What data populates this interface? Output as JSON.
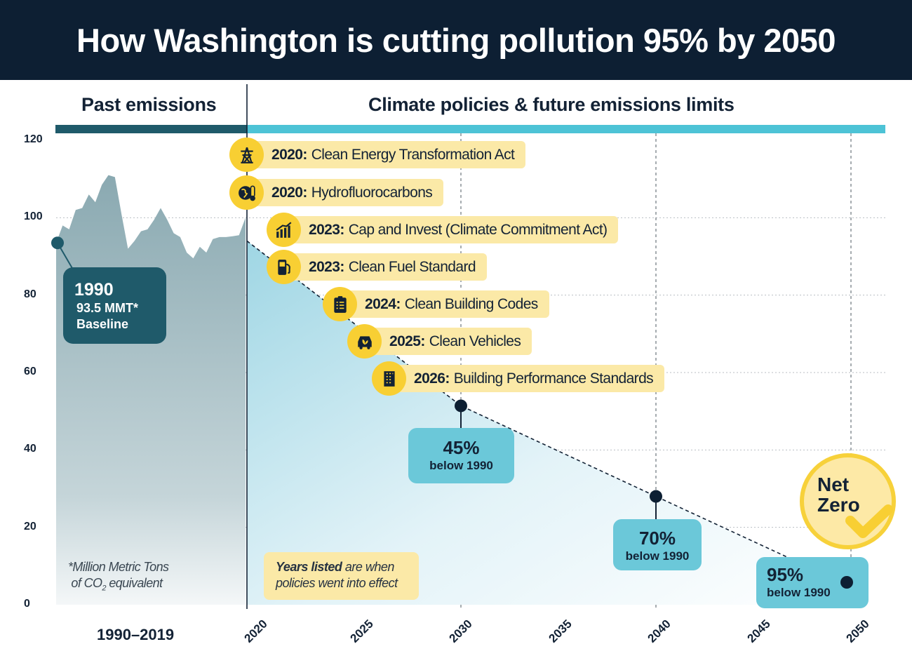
{
  "title": "How Washington is cutting pollution 95% by 2050",
  "sections": {
    "past": "Past emissions",
    "future": "Climate policies & future emissions limits"
  },
  "colors": {
    "header_bg": "#0d1f33",
    "past_bar": "#1f5a6a",
    "future_bar": "#4dc3d6",
    "past_area": "#8fadb4",
    "future_area": "#9fd6e4",
    "pill": "#fbe9a7",
    "icon_circle": "#f8cf33",
    "target_box": "#6bc8d9",
    "marker": "#0d1f33"
  },
  "baseline": {
    "year": "1990",
    "value": "93.5 MMT*",
    "label": "Baseline"
  },
  "footnote": {
    "line1": "*Million Metric Tons",
    "line2a": "of CO",
    "sub": "2",
    "line2b": " equivalent"
  },
  "note": {
    "bold": "Years listed",
    "rest1": " are when",
    "line2": "policies went into effect"
  },
  "period_label": "1990–2019",
  "policies": [
    {
      "year": "2020:",
      "name": "Clean Energy Transformation Act",
      "icon": "power-tower-icon"
    },
    {
      "year": "2020:",
      "name": "Hydrofluorocarbons",
      "icon": "globe-thermometer-icon"
    },
    {
      "year": "2023:",
      "name": "Cap and Invest (Climate Commitment Act)",
      "icon": "rising-bar-chart-icon"
    },
    {
      "year": "2023:",
      "name": "Clean Fuel Standard",
      "icon": "fuel-pump-icon"
    },
    {
      "year": "2024:",
      "name": "Clean Building Codes",
      "icon": "clipboard-checklist-icon"
    },
    {
      "year": "2025:",
      "name": "Clean Vehicles",
      "icon": "car-leaf-icon"
    },
    {
      "year": "2026:",
      "name": "Building Performance Standards",
      "icon": "office-building-icon"
    }
  ],
  "targets": [
    {
      "pct": "45%",
      "sub": "below 1990"
    },
    {
      "pct": "70%",
      "sub": "below 1990"
    },
    {
      "pct": "95%",
      "sub": "below 1990"
    }
  ],
  "net_zero": {
    "line1": "Net",
    "line2": "Zero"
  },
  "chart_data": {
    "type": "area",
    "title": "How Washington is cutting pollution 95% by 2050",
    "ylim": [
      0,
      120
    ],
    "yticks": [
      "0",
      "20",
      "40",
      "60",
      "80",
      "100",
      "120"
    ],
    "xticks": [
      "2020",
      "2025",
      "2030",
      "2035",
      "2040",
      "2045",
      "2050"
    ],
    "grid": true,
    "past_series": {
      "years": [
        1990,
        1991,
        1992,
        1993,
        1994,
        1995,
        1996,
        1997,
        1998,
        1999,
        2000,
        2001,
        2002,
        2003,
        2004,
        2005,
        2006,
        2007,
        2008,
        2009,
        2010,
        2011,
        2012,
        2013,
        2014,
        2015,
        2016,
        2017,
        2018,
        2019
      ],
      "values": [
        93.5,
        98,
        97,
        102,
        102.5,
        106,
        104,
        108.5,
        111,
        110.5,
        101,
        92,
        94,
        96.5,
        97,
        99.5,
        102.5,
        99.5,
        96,
        95,
        91,
        89.5,
        92.5,
        91,
        94.5,
        95,
        95,
        95.2,
        95.5,
        100
      ]
    },
    "future_limits": {
      "years": [
        2020,
        2030,
        2040,
        2050
      ],
      "values": [
        94,
        51.4,
        28,
        4.7
      ]
    },
    "annotations": [
      "1990 93.5 MMT* Baseline",
      "45% below 1990",
      "70% below 1990",
      "95% below 1990",
      "Net Zero"
    ]
  }
}
